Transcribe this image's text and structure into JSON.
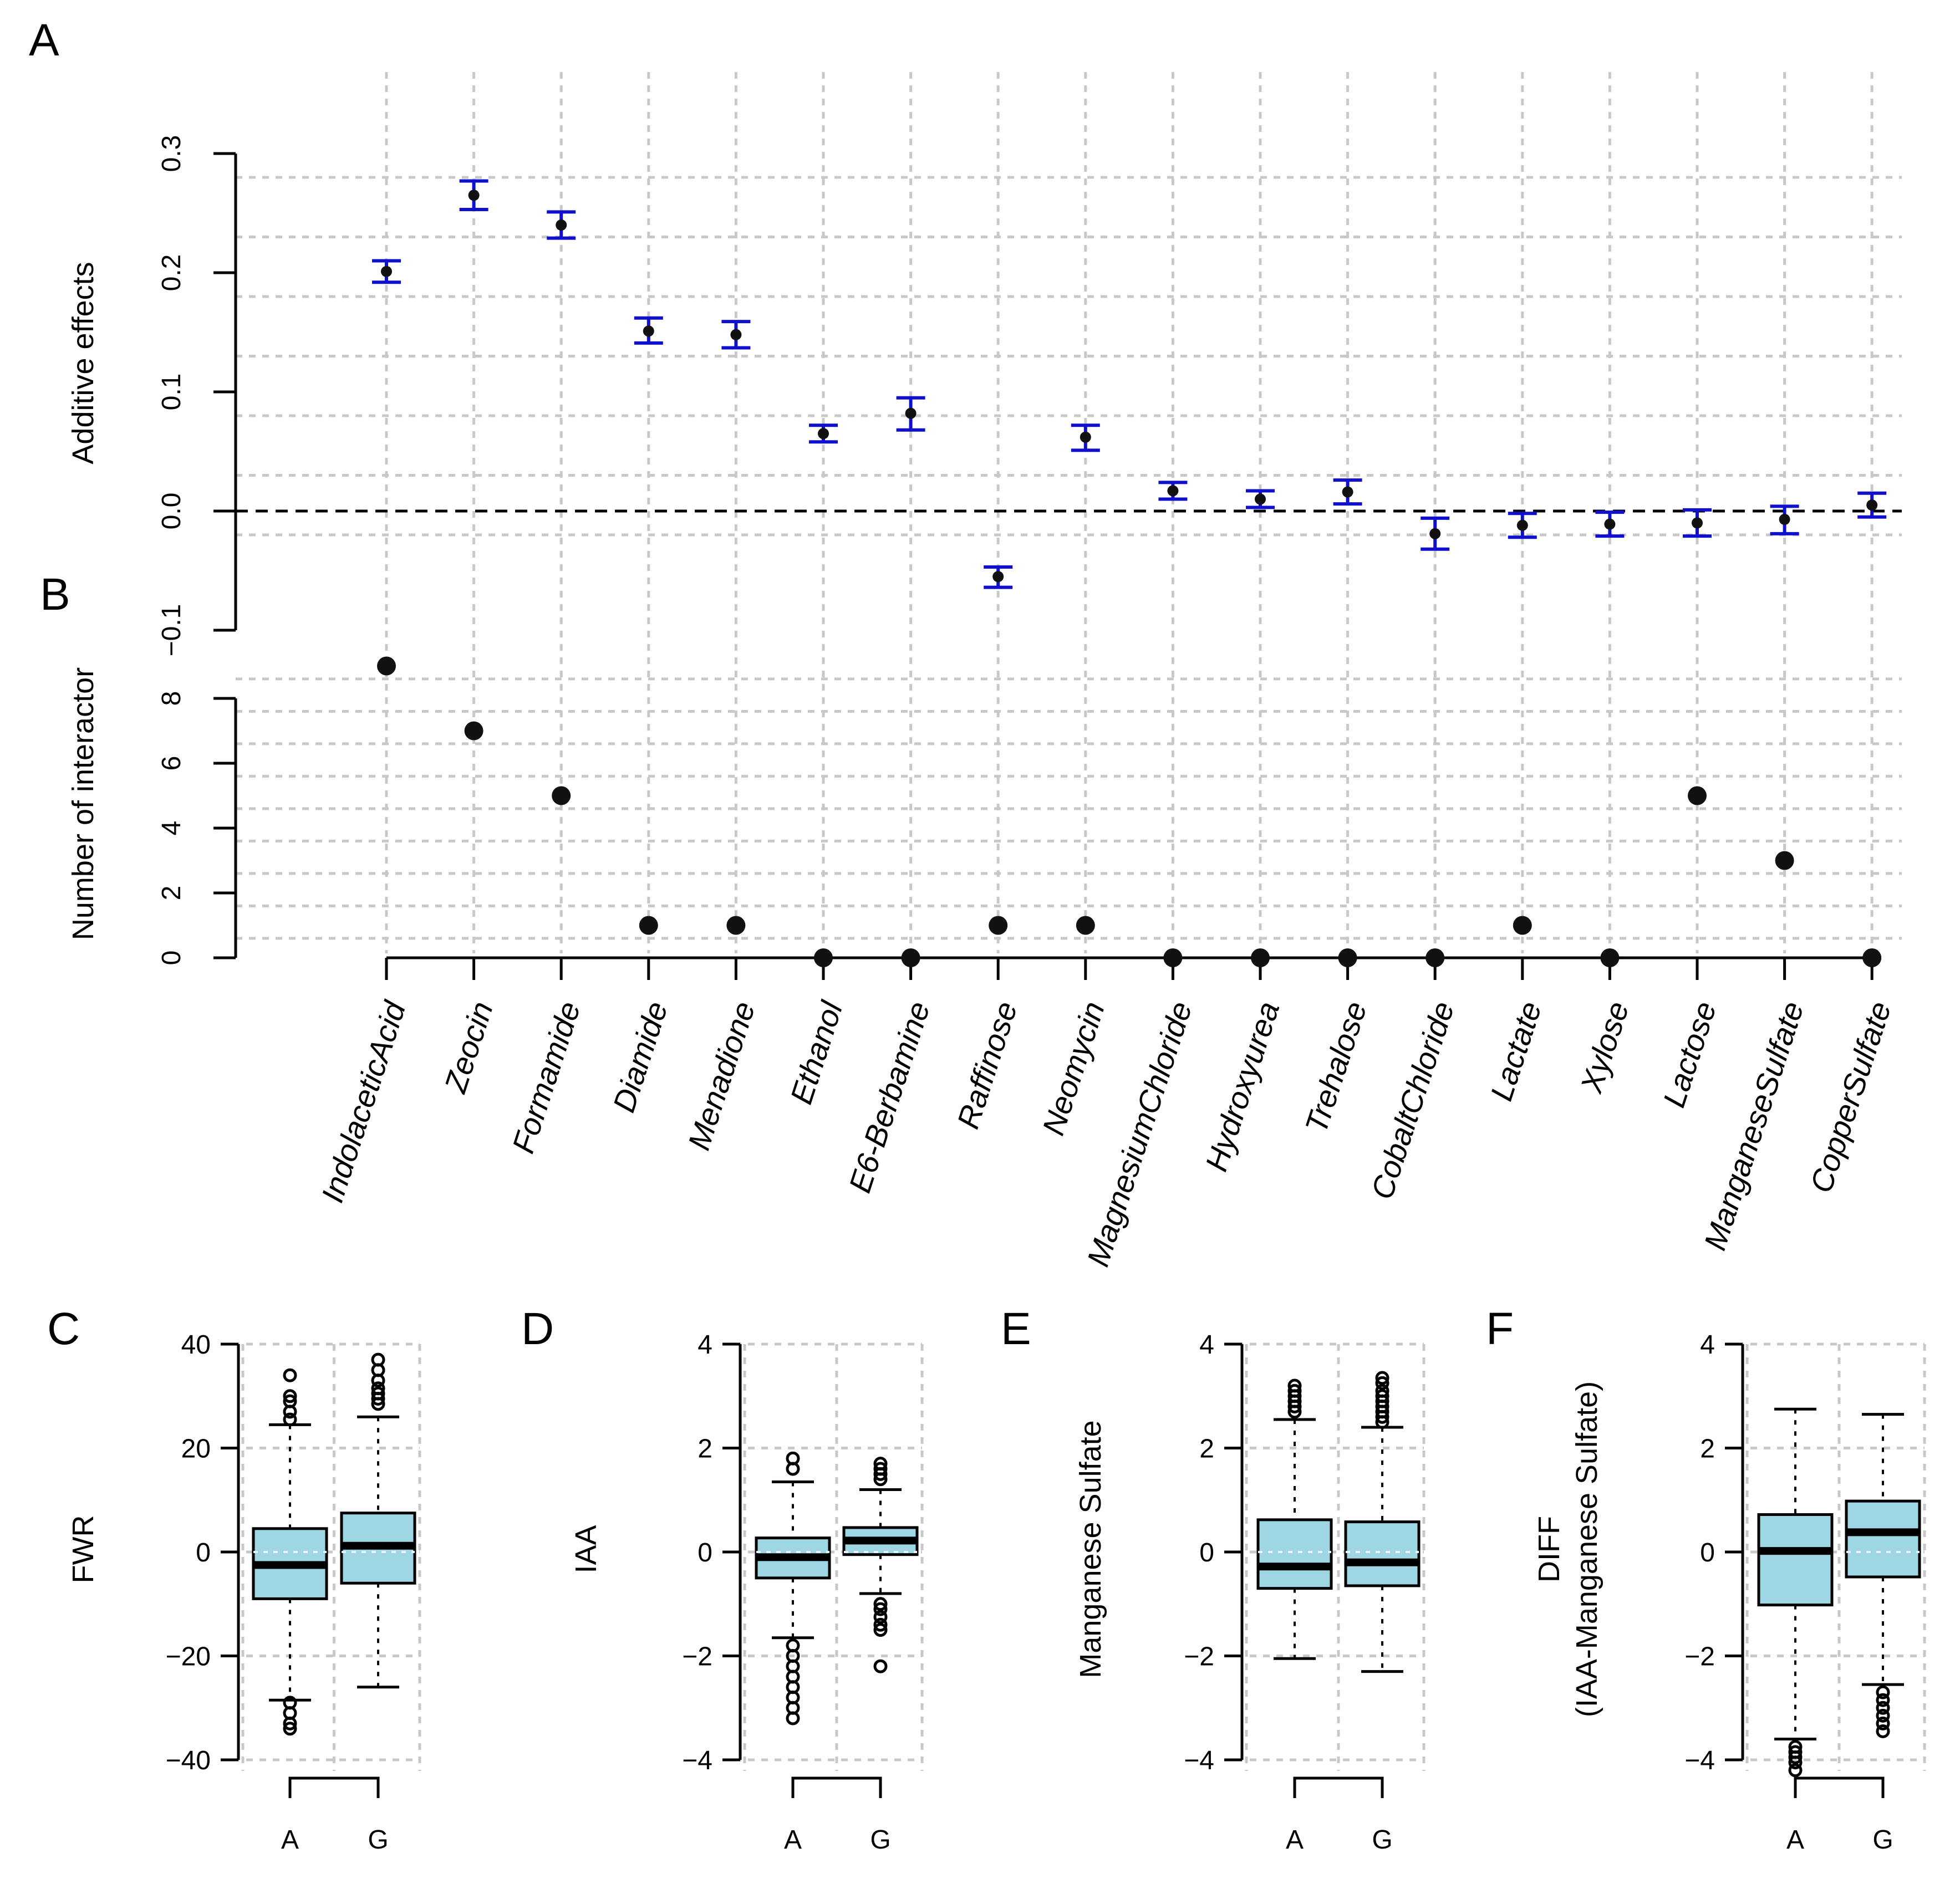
{
  "panels": {
    "A": "A",
    "B": "B",
    "C": "C",
    "D": "D",
    "E": "E",
    "F": "F"
  },
  "chart_data": [
    {
      "id": "A",
      "type": "scatter",
      "ylabel": "Additive effects",
      "ylim": [
        -0.1,
        0.3
      ],
      "yticks": [
        "0.3",
        "0.2",
        "0.1",
        "0.0",
        "-0.1"
      ],
      "ytick_values": [
        0.3,
        0.2,
        0.1,
        0.0,
        -0.1
      ],
      "reference_line": 0,
      "categories": [
        "IndolaceticAcid",
        "Zeocin",
        "Formamide",
        "Diamide",
        "Menadione",
        "Ethanol",
        "E6-Berbamine",
        "Raffinose",
        "Neomycin",
        "MagnesiumChloride",
        "Hydroxyurea",
        "Trehalose",
        "CobaltChloride",
        "Lactate",
        "Xylose",
        "Lactose",
        "ManganeseSulfate",
        "CopperSulfate"
      ],
      "values": [
        0.201,
        0.265,
        0.24,
        0.151,
        0.148,
        0.065,
        0.082,
        -0.055,
        0.062,
        0.017,
        0.01,
        0.016,
        -0.019,
        -0.012,
        -0.011,
        -0.01,
        -0.007,
        0.005
      ],
      "err_low": [
        0.192,
        0.253,
        0.229,
        0.141,
        0.137,
        0.058,
        0.068,
        -0.064,
        0.051,
        0.01,
        0.003,
        0.006,
        -0.032,
        -0.022,
        -0.021,
        -0.021,
        -0.019,
        -0.005
      ],
      "err_high": [
        0.21,
        0.277,
        0.251,
        0.162,
        0.159,
        0.072,
        0.095,
        -0.047,
        0.072,
        0.024,
        0.017,
        0.026,
        -0.006,
        -0.002,
        -0.001,
        0.001,
        0.004,
        0.015
      ]
    },
    {
      "id": "B",
      "type": "scatter",
      "ylabel": "Number of interactor",
      "ylim": [
        0,
        8
      ],
      "yticks": [
        "8",
        "6",
        "4",
        "2",
        "0"
      ],
      "ytick_values": [
        8,
        6,
        4,
        2,
        0
      ],
      "values": [
        9,
        7,
        5,
        1,
        1,
        0,
        0,
        1,
        1,
        0,
        0,
        0,
        0,
        1,
        0,
        5,
        3,
        0
      ]
    },
    {
      "id": "C",
      "type": "box",
      "ylabel": "FWR",
      "ylim": [
        -40,
        40
      ],
      "yticks": [
        "40",
        "20",
        "0",
        "-20",
        "-40"
      ],
      "ytick_values": [
        40,
        20,
        0,
        -20,
        -40
      ],
      "categories": [
        "A",
        "G"
      ],
      "boxes": [
        {
          "median": -2.5,
          "q1": -9,
          "q3": 4.5,
          "whisker_low": -28.5,
          "whisker_high": 24.5,
          "outliers": [
            34,
            30,
            29,
            27,
            25.5,
            -29,
            -31,
            -33,
            -34
          ]
        },
        {
          "median": 1.2,
          "q1": -6,
          "q3": 7.5,
          "whisker_low": -26,
          "whisker_high": 26,
          "outliers": [
            37,
            35,
            33,
            31.5,
            30.5,
            29.5,
            28.5
          ]
        }
      ]
    },
    {
      "id": "D",
      "type": "box",
      "ylabel": "IAA",
      "ylim": [
        -4,
        4
      ],
      "yticks": [
        "4",
        "2",
        "0",
        "-2",
        "-4"
      ],
      "ytick_values": [
        4,
        2,
        0,
        -2,
        -4
      ],
      "categories": [
        "A",
        "G"
      ],
      "boxes": [
        {
          "median": -0.1,
          "q1": -0.5,
          "q3": 0.27,
          "whisker_low": -1.65,
          "whisker_high": 1.35,
          "outliers": [
            1.8,
            1.6,
            -1.8,
            -2.0,
            -2.2,
            -2.4,
            -2.6,
            -2.8,
            -3.0,
            -3.2
          ]
        },
        {
          "median": 0.22,
          "q1": -0.05,
          "q3": 0.47,
          "whisker_low": -0.8,
          "whisker_high": 1.2,
          "outliers": [
            1.7,
            1.6,
            1.5,
            1.4,
            -1.0,
            -1.1,
            -1.25,
            -1.4,
            -1.5,
            -2.2
          ]
        }
      ]
    },
    {
      "id": "E",
      "type": "box",
      "ylabel": "Manganese Sulfate",
      "ylim": [
        -4,
        4
      ],
      "yticks": [
        "4",
        "2",
        "0",
        "-2",
        "-4"
      ],
      "ytick_values": [
        4,
        2,
        0,
        -2,
        -4
      ],
      "categories": [
        "A",
        "G"
      ],
      "boxes": [
        {
          "median": -0.28,
          "q1": -0.7,
          "q3": 0.62,
          "whisker_low": -2.05,
          "whisker_high": 2.55,
          "outliers": [
            3.2,
            3.1,
            3.0,
            2.9,
            2.8,
            2.7
          ]
        },
        {
          "median": -0.2,
          "q1": -0.65,
          "q3": 0.58,
          "whisker_low": -2.3,
          "whisker_high": 2.4,
          "outliers": [
            3.35,
            3.25,
            3.1,
            3.0,
            2.9,
            2.8,
            2.7,
            2.6,
            2.5
          ]
        }
      ]
    },
    {
      "id": "F",
      "type": "box",
      "ylabel": "DIFF",
      "ylabel2": "(IAA-Manganese Sulfate)",
      "ylim": [
        -4,
        4
      ],
      "yticks": [
        "4",
        "2",
        "0",
        "-2",
        "-4"
      ],
      "ytick_values": [
        4,
        2,
        0,
        -2,
        -4
      ],
      "categories": [
        "A",
        "G"
      ],
      "boxes": [
        {
          "median": 0.02,
          "q1": -1.02,
          "q3": 0.72,
          "whisker_low": -3.6,
          "whisker_high": 2.75,
          "outliers": [
            -3.75,
            -3.85,
            -3.95,
            -4.05,
            -4.2
          ]
        },
        {
          "median": 0.38,
          "q1": -0.48,
          "q3": 0.98,
          "whisker_low": -2.55,
          "whisker_high": 2.65,
          "outliers": [
            -2.7,
            -2.85,
            -3.0,
            -3.15,
            -3.3,
            -3.45
          ]
        }
      ]
    }
  ]
}
